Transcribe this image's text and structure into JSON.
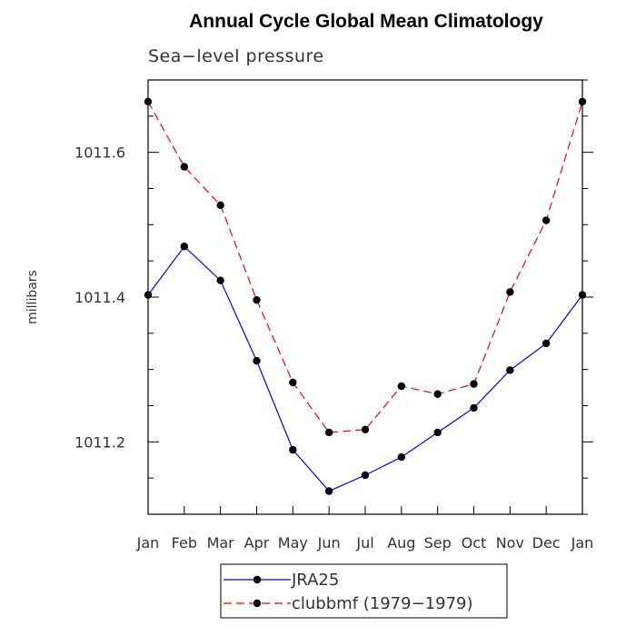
{
  "chart_data": {
    "type": "line",
    "title": "Annual Cycle Global Mean Climatology",
    "subtitle": "Sea−level pressure",
    "ylabel": "millibars",
    "xlabel": "",
    "categories": [
      "Jan",
      "Feb",
      "Mar",
      "Apr",
      "May",
      "Jun",
      "Jul",
      "Aug",
      "Sep",
      "Oct",
      "Nov",
      "Dec",
      "Jan"
    ],
    "ylim": [
      1011.1,
      1011.7
    ],
    "yticks": [
      1011.2,
      1011.4,
      1011.6
    ],
    "ytick_labels": [
      "1011.2",
      "1011.4",
      "1011.6"
    ],
    "grid": false,
    "legend_position": "bottom",
    "series": [
      {
        "name": "JRA25",
        "color": "#0000ff",
        "line_style": "solid",
        "marker": "filled-circle",
        "values": [
          1011.403,
          1011.47,
          1011.423,
          1011.312,
          1011.189,
          1011.132,
          1011.154,
          1011.179,
          1011.213,
          1011.247,
          1011.299,
          1011.336,
          1011.403
        ]
      },
      {
        "name": "clubbmf (1979−1979)",
        "color": "#ff0000",
        "line_style": "dashed",
        "marker": "filled-circle",
        "values": [
          1011.67,
          1011.58,
          1011.527,
          1011.396,
          1011.282,
          1011.213,
          1011.217,
          1011.277,
          1011.266,
          1011.28,
          1011.407,
          1011.506,
          1011.67
        ]
      }
    ]
  }
}
